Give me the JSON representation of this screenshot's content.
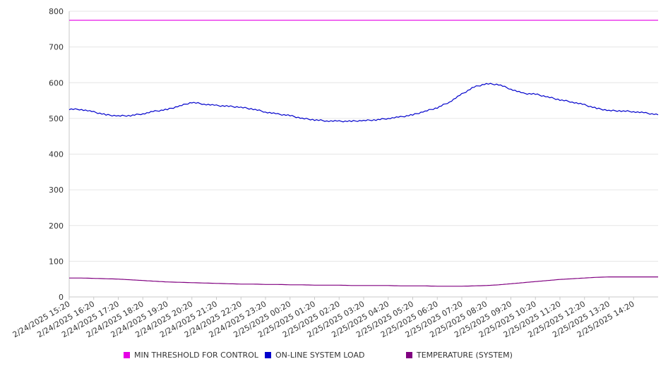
{
  "chart_data": {
    "type": "line",
    "ylim": [
      0,
      800
    ],
    "yticks": [
      0,
      100,
      200,
      300,
      400,
      500,
      600,
      700,
      800
    ],
    "x_tick_labels": [
      "2/24/2025 15:20",
      "2/24/2025 16:20",
      "2/24/2025 17:20",
      "2/24/2025 18:20",
      "2/24/2025 19:20",
      "2/24/2025 20:20",
      "2/24/2025 21:20",
      "2/24/2025 22:20",
      "2/24/2025 23:20",
      "2/25/2025 00:20",
      "2/25/2025 01:20",
      "2/25/2025 02:20",
      "2/25/2025 03:20",
      "2/25/2025 04:20",
      "2/25/2025 05:20",
      "2/25/2025 06:20",
      "2/25/2025 07:20",
      "2/25/2025 08:20",
      "2/25/2025 09:20",
      "2/25/2025 10:20",
      "2/25/2025 11:20",
      "2/25/2025 12:20",
      "2/25/2025 13:20",
      "2/25/2025 14:20"
    ],
    "x": [
      "2/24/2025 15:20",
      "2/24/2025 15:50",
      "2/24/2025 16:20",
      "2/24/2025 16:50",
      "2/24/2025 17:20",
      "2/24/2025 17:50",
      "2/24/2025 18:20",
      "2/24/2025 18:50",
      "2/24/2025 19:20",
      "2/24/2025 19:50",
      "2/24/2025 20:20",
      "2/24/2025 20:50",
      "2/24/2025 21:20",
      "2/24/2025 21:50",
      "2/24/2025 22:20",
      "2/24/2025 22:50",
      "2/24/2025 23:20",
      "2/24/2025 23:50",
      "2/25/2025 00:20",
      "2/25/2025 00:50",
      "2/25/2025 01:20",
      "2/25/2025 01:50",
      "2/25/2025 02:20",
      "2/25/2025 02:50",
      "2/25/2025 03:20",
      "2/25/2025 03:50",
      "2/25/2025 04:20",
      "2/25/2025 04:50",
      "2/25/2025 05:20",
      "2/25/2025 05:50",
      "2/25/2025 06:20",
      "2/25/2025 06:50",
      "2/25/2025 07:20",
      "2/25/2025 07:50",
      "2/25/2025 08:20",
      "2/25/2025 08:50",
      "2/25/2025 09:20",
      "2/25/2025 09:50",
      "2/25/2025 10:20",
      "2/25/2025 10:50",
      "2/25/2025 11:20",
      "2/25/2025 11:50",
      "2/25/2025 12:20",
      "2/25/2025 12:50",
      "2/25/2025 13:20",
      "2/25/2025 13:50",
      "2/25/2025 14:20",
      "2/25/2025 14:50",
      "2/25/2025 15:20"
    ],
    "series": [
      {
        "name": "MIN THRESHOLD FOR CONTROL",
        "color": "#e600e6",
        "values": [
          775,
          775,
          775,
          775,
          775,
          775,
          775,
          775,
          775,
          775,
          775,
          775,
          775,
          775,
          775,
          775,
          775,
          775,
          775,
          775,
          775,
          775,
          775,
          775,
          775,
          775,
          775,
          775,
          775,
          775,
          775,
          775,
          775,
          775,
          775,
          775,
          775,
          775,
          775,
          775,
          775,
          775,
          775,
          775,
          775,
          775,
          775,
          775,
          775
        ]
      },
      {
        "name": "ON-LINE SYSTEM LOAD",
        "color": "#0000cc",
        "values": [
          526,
          525,
          518,
          510,
          507,
          508,
          513,
          520,
          525,
          535,
          545,
          540,
          536,
          534,
          531,
          526,
          518,
          512,
          508,
          500,
          496,
          493,
          492,
          492,
          494,
          496,
          500,
          504,
          510,
          520,
          530,
          546,
          568,
          588,
          597,
          595,
          582,
          570,
          568,
          560,
          552,
          546,
          538,
          528,
          522,
          521,
          519,
          515,
          510
        ]
      },
      {
        "name": "TEMPERATURE (SYSTEM)",
        "color": "#800080",
        "values": [
          53,
          53,
          52,
          51,
          50,
          48,
          46,
          44,
          42,
          41,
          40,
          39,
          38,
          37,
          36,
          36,
          35,
          35,
          34,
          34,
          33,
          33,
          33,
          32,
          32,
          32,
          32,
          31,
          31,
          31,
          30,
          30,
          30,
          31,
          32,
          34,
          37,
          40,
          43,
          46,
          49,
          51,
          53,
          55,
          56,
          56,
          56,
          56,
          56
        ]
      }
    ],
    "grid": true,
    "legend_position": "bottom"
  },
  "legend": {
    "items": [
      {
        "label": "MIN THRESHOLD FOR CONTROL",
        "color": "#e600e6"
      },
      {
        "label": "ON-LINE SYSTEM LOAD",
        "color": "#0000cc"
      },
      {
        "label": "TEMPERATURE (SYSTEM)",
        "color": "#800080"
      }
    ]
  }
}
